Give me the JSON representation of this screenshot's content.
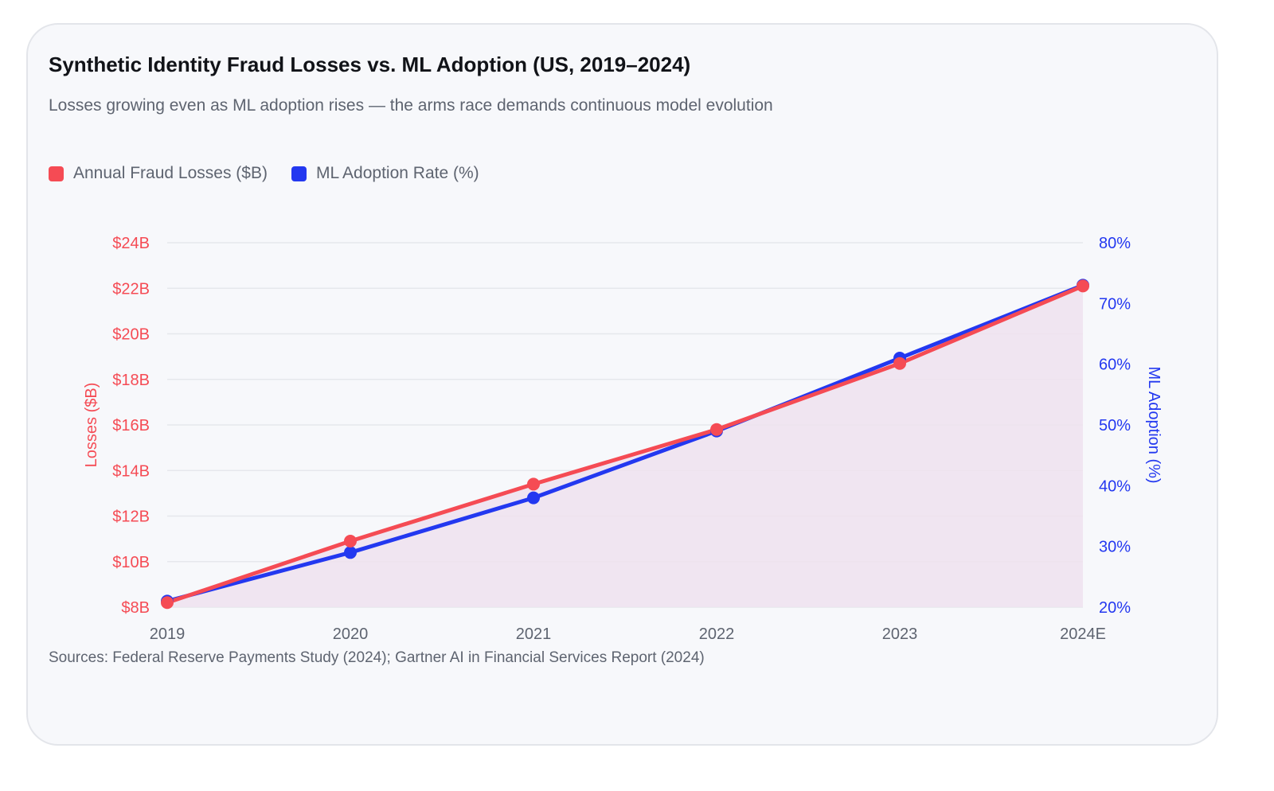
{
  "title": "Synthetic Identity Fraud Losses vs. ML Adoption (US, 2019–2024)",
  "subtitle": "Losses growing even as ML adoption rises — the arms race demands continuous model evolution",
  "source": "Sources: Federal Reserve Payments Study (2024); Gartner AI in Financial Services Report (2024)",
  "colors": {
    "losses": "#f54b54",
    "adoption": "#2338f0",
    "area": "#efe2ef",
    "grid": "#e6e7ec",
    "tick": "#5e6470"
  },
  "chart_data": {
    "type": "line",
    "categories": [
      "2019",
      "2020",
      "2021",
      "2022",
      "2023",
      "2024E"
    ],
    "series": [
      {
        "name": "Annual Fraud Losses ($B)",
        "axis": "left",
        "values": [
          8.2,
          10.9,
          13.4,
          15.8,
          18.7,
          22.1
        ],
        "fill": true
      },
      {
        "name": "ML Adoption Rate (%)",
        "axis": "right",
        "values": [
          21,
          29,
          38,
          49,
          61,
          73
        ],
        "fill": false
      }
    ],
    "y_left": {
      "label": "Losses ($B)",
      "min": 8,
      "max": 24,
      "ticks": [
        {
          "value": 8,
          "label": "$8B"
        },
        {
          "value": 10,
          "label": "$10B"
        },
        {
          "value": 12,
          "label": "$12B"
        },
        {
          "value": 14,
          "label": "$14B"
        },
        {
          "value": 16,
          "label": "$16B"
        },
        {
          "value": 18,
          "label": "$18B"
        },
        {
          "value": 20,
          "label": "$20B"
        },
        {
          "value": 22,
          "label": "$22B"
        },
        {
          "value": 24,
          "label": "$24B"
        }
      ]
    },
    "y_right": {
      "label": "ML Adoption (%)",
      "min": 20,
      "max": 80,
      "ticks": [
        {
          "value": 20,
          "label": "20%"
        },
        {
          "value": 30,
          "label": "30%"
        },
        {
          "value": 40,
          "label": "40%"
        },
        {
          "value": 50,
          "label": "50%"
        },
        {
          "value": 60,
          "label": "60%"
        },
        {
          "value": 70,
          "label": "70%"
        },
        {
          "value": 80,
          "label": "80%"
        }
      ]
    },
    "grid": true,
    "legend_position": "top-left"
  }
}
